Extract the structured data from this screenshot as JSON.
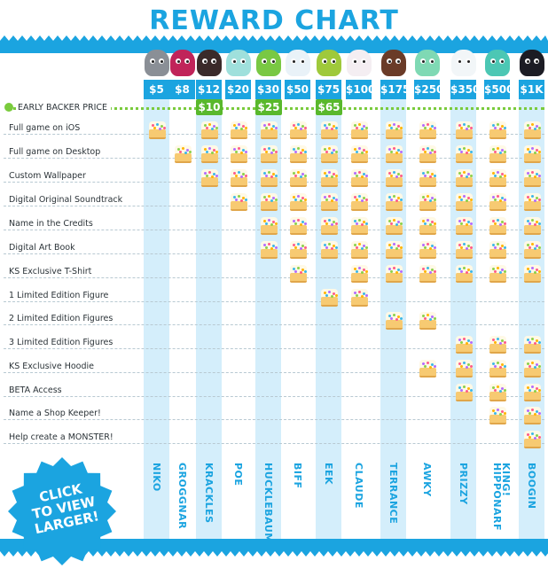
{
  "title": "REWARD CHART",
  "early_backer_label": "EARLY BACKER PRICE",
  "badge": {
    "lines": [
      "CLICK",
      "TO VIEW",
      "LARGER!"
    ]
  },
  "colors": {
    "accent": "#1ba4e0",
    "early": "#7acb3d",
    "early_tag": "#59b82c",
    "column_tint": "#d4eefb"
  },
  "tiers": [
    {
      "price": "$5",
      "name": "NIKO",
      "early": "",
      "avatar_color": "#8a8f96",
      "start": 0,
      "rewards": [
        0
      ]
    },
    {
      "price": "$8",
      "name": "GROGGNAR",
      "early": "",
      "avatar_color": "#c0245a",
      "rewards": [
        1
      ]
    },
    {
      "price": "$12",
      "name": "KRACKLES",
      "early": "$10",
      "avatar_color": "#3a2a2a",
      "rewards": [
        0,
        1,
        2
      ]
    },
    {
      "price": "$20",
      "name": "POE",
      "early": "",
      "avatar_color": "#9fe0dc",
      "rewards": [
        0,
        1,
        2,
        3
      ]
    },
    {
      "price": "$30",
      "name": "HUCKLEBAUM",
      "early": "$25",
      "avatar_color": "#79c843",
      "rewards": [
        0,
        1,
        2,
        3,
        4,
        5
      ]
    },
    {
      "price": "$50",
      "name": "BIFF",
      "early": "",
      "avatar_color": "#e9f2f8",
      "rewards": [
        0,
        1,
        2,
        3,
        4,
        5,
        6
      ]
    },
    {
      "price": "$75",
      "name": "EEK",
      "early": "$65",
      "avatar_color": "#9fc93b",
      "rewards": [
        0,
        1,
        2,
        3,
        4,
        5,
        7
      ]
    },
    {
      "price": "$100",
      "name": "CLAUDE",
      "early": "",
      "avatar_color": "#f4eef2",
      "rewards": [
        0,
        1,
        2,
        3,
        4,
        5,
        6,
        7
      ]
    },
    {
      "price": "$175",
      "name": "TERRANCE",
      "early": "",
      "avatar_color": "#6a3b28",
      "rewards": [
        0,
        1,
        2,
        3,
        4,
        5,
        6,
        8
      ]
    },
    {
      "price": "$250",
      "name": "AWKY",
      "early": "",
      "avatar_color": "#7fd9b4",
      "rewards": [
        0,
        1,
        2,
        3,
        4,
        5,
        6,
        8,
        10
      ]
    },
    {
      "price": "$350",
      "name": "PRIZZY",
      "early": "",
      "avatar_color": "#f2f6f8",
      "rewards": [
        0,
        1,
        2,
        3,
        4,
        5,
        6,
        9,
        10,
        11
      ]
    },
    {
      "price": "$500",
      "name": "HIPPONARF",
      "early": "",
      "avatar_color": "#4cc7b4",
      "rewards": [
        0,
        1,
        2,
        3,
        4,
        5,
        6,
        9,
        10,
        11,
        12
      ]
    },
    {
      "price": "$1K",
      "name": "BOOGIN KING!",
      "early": "",
      "avatar_color": "#1c1c24",
      "rewards": [
        0,
        1,
        2,
        3,
        4,
        5,
        6,
        9,
        10,
        11,
        12,
        13
      ]
    }
  ],
  "rewards": [
    "Full game on iOS",
    "Full game on Desktop",
    "Custom Wallpaper",
    "Digital Original Soundtrack",
    "Name in the Credits",
    "Digital Art Book",
    "KS Exclusive T-Shirt",
    "1 Limited Edition Figure",
    "2 Limited Edition Figures",
    "3 Limited Edition Figures",
    "KS Exclusive Hoodie",
    "BETA Access",
    "Name a Shop Keeper!",
    "Help create a MONSTER!"
  ]
}
